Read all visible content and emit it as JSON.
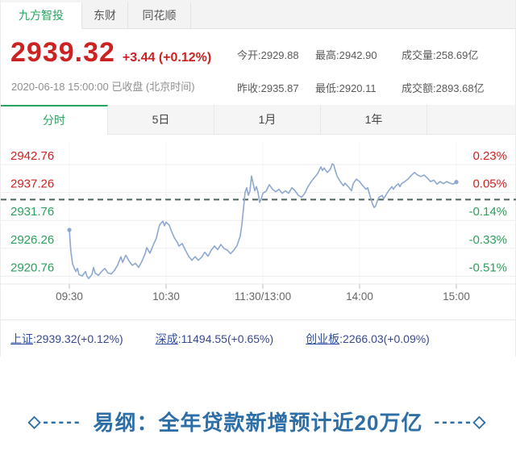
{
  "top_tabs": [
    {
      "label": "九方智投",
      "active": true
    },
    {
      "label": "东财",
      "active": false
    },
    {
      "label": "同花顺",
      "active": false
    }
  ],
  "quote": {
    "price": "2939.32",
    "change": "+3.44 (+0.12%)",
    "datetime_line": "2020-06-18 15:00:00 已收盘 (北京时间)",
    "stats_rows": [
      [
        "今开:2929.88",
        "最高:2942.90",
        "成交量:258.69亿"
      ],
      [
        "昨收:2935.87",
        "最低:2920.11",
        "成交额:2893.68亿"
      ]
    ]
  },
  "chart_tabs": [
    {
      "label": "分时",
      "active": true
    },
    {
      "label": "5日",
      "active": false
    },
    {
      "label": "1月",
      "active": false
    },
    {
      "label": "1年",
      "active": false
    }
  ],
  "chart_data": {
    "type": "line",
    "x_ticks": [
      "09:30",
      "10:30",
      "11:30/13:00",
      "14:00",
      "15:00"
    ],
    "y_axis_left": [
      2942.76,
      2937.26,
      2931.76,
      2926.26,
      2920.76
    ],
    "y_axis_right": [
      "0.23%",
      "0.05%",
      "-0.14%",
      "-0.33%",
      "-0.51%"
    ],
    "prev_close": 2935.87,
    "open": 2929.88,
    "high": 2942.9,
    "low": 2920.11,
    "close": 2939.32,
    "session_minutes": 240,
    "grid": true,
    "points": [
      [
        0,
        2929.88
      ],
      [
        1,
        2925.5
      ],
      [
        2,
        2923.2
      ],
      [
        3,
        2922.4
      ],
      [
        4,
        2921.7
      ],
      [
        5,
        2922.3
      ],
      [
        6,
        2921.1
      ],
      [
        8,
        2920.8
      ],
      [
        10,
        2921.7
      ],
      [
        11,
        2920.7
      ],
      [
        12,
        2920.3
      ],
      [
        14,
        2921.1
      ],
      [
        15,
        2922.5
      ],
      [
        16,
        2921.4
      ],
      [
        18,
        2920.9
      ],
      [
        20,
        2921.7
      ],
      [
        22,
        2922.3
      ],
      [
        24,
        2921.4
      ],
      [
        26,
        2921.2
      ],
      [
        28,
        2921.9
      ],
      [
        30,
        2923.0
      ],
      [
        32,
        2924.6
      ],
      [
        33,
        2923.5
      ],
      [
        35,
        2924.9
      ],
      [
        37,
        2923.8
      ],
      [
        39,
        2922.9
      ],
      [
        41,
        2923.3
      ],
      [
        43,
        2922.5
      ],
      [
        45,
        2923.7
      ],
      [
        47,
        2925.2
      ],
      [
        48,
        2926.4
      ],
      [
        50,
        2925.3
      ],
      [
        52,
        2926.9
      ],
      [
        54,
        2928.3
      ],
      [
        55,
        2929.7
      ],
      [
        56,
        2930.9
      ],
      [
        58,
        2931.6
      ],
      [
        59,
        2930.7
      ],
      [
        60,
        2931.4
      ],
      [
        62,
        2930.8
      ],
      [
        63,
        2929.9
      ],
      [
        65,
        2928.4
      ],
      [
        67,
        2927.4
      ],
      [
        68,
        2926.7
      ],
      [
        70,
        2927.2
      ],
      [
        72,
        2925.9
      ],
      [
        74,
        2924.7
      ],
      [
        76,
        2923.9
      ],
      [
        78,
        2924.6
      ],
      [
        80,
        2923.9
      ],
      [
        82,
        2924.5
      ],
      [
        84,
        2925.5
      ],
      [
        86,
        2924.7
      ],
      [
        88,
        2925.9
      ],
      [
        90,
        2926.7
      ],
      [
        92,
        2926.0
      ],
      [
        94,
        2927.0
      ],
      [
        96,
        2926.2
      ],
      [
        98,
        2925.9
      ],
      [
        100,
        2925.2
      ],
      [
        102,
        2925.9
      ],
      [
        104,
        2926.8
      ],
      [
        106,
        2928.7
      ],
      [
        107,
        2931.0
      ],
      [
        108,
        2934.1
      ],
      [
        109,
        2937.3
      ],
      [
        110,
        2938.2
      ],
      [
        111,
        2936.7
      ],
      [
        112,
        2937.6
      ],
      [
        113,
        2940.5
      ],
      [
        114,
        2939.0
      ],
      [
        115,
        2937.6
      ],
      [
        116,
        2938.4
      ],
      [
        117,
        2937.3
      ],
      [
        118,
        2935.3
      ],
      [
        119,
        2936.0
      ],
      [
        120,
        2937.1
      ],
      [
        122,
        2937.5
      ],
      [
        124,
        2938.8
      ],
      [
        126,
        2937.9
      ],
      [
        128,
        2937.4
      ],
      [
        130,
        2937.9
      ],
      [
        132,
        2937.1
      ],
      [
        134,
        2937.6
      ],
      [
        136,
        2937.1
      ],
      [
        138,
        2938.2
      ],
      [
        140,
        2937.6
      ],
      [
        142,
        2936.7
      ],
      [
        144,
        2936.3
      ],
      [
        146,
        2937.1
      ],
      [
        148,
        2938.4
      ],
      [
        150,
        2939.4
      ],
      [
        152,
        2940.2
      ],
      [
        154,
        2941.0
      ],
      [
        156,
        2942.3
      ],
      [
        157,
        2941.6
      ],
      [
        158,
        2942.1
      ],
      [
        160,
        2941.2
      ],
      [
        162,
        2941.9
      ],
      [
        163,
        2942.9
      ],
      [
        164,
        2942.7
      ],
      [
        165,
        2941.5
      ],
      [
        166,
        2940.5
      ],
      [
        168,
        2939.4
      ],
      [
        170,
        2938.6
      ],
      [
        171,
        2939.1
      ],
      [
        173,
        2938.4
      ],
      [
        175,
        2937.6
      ],
      [
        176,
        2939.0
      ],
      [
        178,
        2939.9
      ],
      [
        180,
        2939.4
      ],
      [
        182,
        2938.6
      ],
      [
        184,
        2937.9
      ],
      [
        185,
        2938.2
      ],
      [
        186,
        2937.1
      ],
      [
        187,
        2936.0
      ],
      [
        188,
        2935.0
      ],
      [
        189,
        2934.3
      ],
      [
        190,
        2934.6
      ],
      [
        191,
        2935.6
      ],
      [
        192,
        2936.3
      ],
      [
        194,
        2936.7
      ],
      [
        195,
        2936.0
      ],
      [
        196,
        2936.6
      ],
      [
        198,
        2937.6
      ],
      [
        200,
        2938.4
      ],
      [
        201,
        2937.9
      ],
      [
        202,
        2938.4
      ],
      [
        204,
        2939.0
      ],
      [
        205,
        2938.4
      ],
      [
        206,
        2939.0
      ],
      [
        208,
        2939.4
      ],
      [
        210,
        2939.9
      ],
      [
        212,
        2940.6
      ],
      [
        214,
        2941.2
      ],
      [
        216,
        2940.7
      ],
      [
        218,
        2940.4
      ],
      [
        220,
        2940.7
      ],
      [
        222,
        2940.1
      ],
      [
        224,
        2939.4
      ],
      [
        226,
        2939.7
      ],
      [
        228,
        2938.9
      ],
      [
        230,
        2939.4
      ],
      [
        232,
        2939.0
      ],
      [
        234,
        2939.4
      ],
      [
        236,
        2939.1
      ],
      [
        238,
        2938.9
      ],
      [
        240,
        2939.32
      ]
    ]
  },
  "indices": [
    {
      "name": "上证",
      "rest": ":2939.32(+0.12%)"
    },
    {
      "name": "深成",
      "rest": ":11494.55(+0.65%)"
    },
    {
      "name": "创业板",
      "rest": ":2266.03(+0.09%)"
    }
  ],
  "headline": {
    "left_decor": "◇-----",
    "text": "易纲：全年贷款新增预计近20万亿",
    "right_decor": "-----◇"
  },
  "colors": {
    "up_red": "#cc2222",
    "down_green": "#2e9e5b",
    "accent_green": "#27a35f",
    "line_blue": "#8fa8d0",
    "prev_close_dash": "#4a665c",
    "link_blue": "#2f4fa5",
    "headline_blue": "#2d6ea6",
    "grid_gray": "#ededed"
  }
}
